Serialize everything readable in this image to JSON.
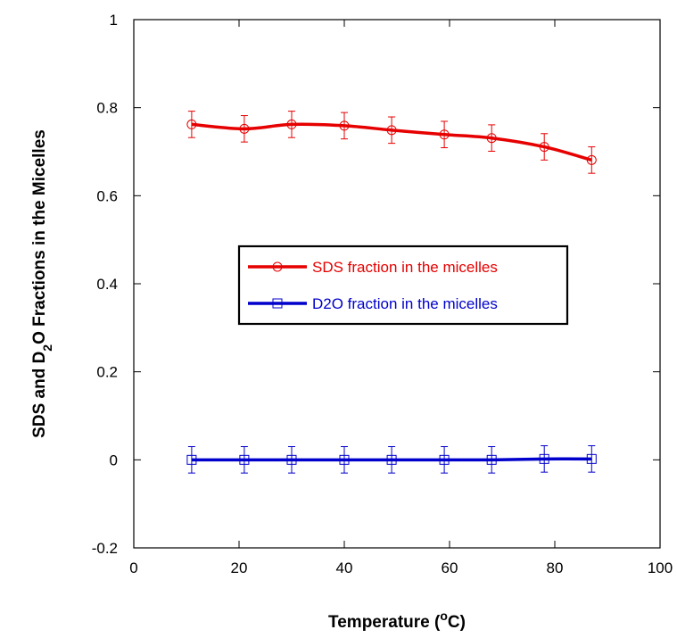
{
  "chart_data": {
    "type": "line",
    "xlabel": {
      "main": "Temperature (",
      "sup": "o",
      "tail": "C)"
    },
    "ylabel": {
      "pre": "SDS and D",
      "sub": "2",
      "post": "O Fractions in the Micelles"
    },
    "xlim": [
      0,
      100
    ],
    "ylim": [
      -0.2,
      1
    ],
    "x_ticks": [
      0,
      20,
      40,
      60,
      80,
      100
    ],
    "y_ticks": [
      -0.2,
      0,
      0.2,
      0.4,
      0.6,
      0.8,
      1
    ],
    "x_tick_labels": [
      "0",
      "20",
      "40",
      "60",
      "80",
      "100"
    ],
    "y_tick_labels": [
      "-0.2",
      "0",
      "0.2",
      "0.4",
      "0.6",
      "0.8",
      "1"
    ],
    "grid": false,
    "legend_position": "center",
    "series": [
      {
        "name": "SDS fraction in the micelles",
        "color": "#e60000",
        "marker": "circle",
        "x": [
          11,
          21,
          30,
          40,
          49,
          59,
          68,
          78,
          87
        ],
        "y": [
          0.762,
          0.752,
          0.762,
          0.759,
          0.749,
          0.739,
          0.731,
          0.711,
          0.681
        ],
        "error": 0.03
      },
      {
        "name": "D2O fraction in the micelles",
        "color": "#0000cc",
        "marker": "square",
        "x": [
          11,
          21,
          30,
          40,
          49,
          59,
          68,
          78,
          87
        ],
        "y": [
          0.0,
          0.0,
          0.0,
          0.0,
          0.0,
          0.0,
          0.0,
          0.002,
          0.002
        ],
        "error": 0.03
      }
    ]
  }
}
